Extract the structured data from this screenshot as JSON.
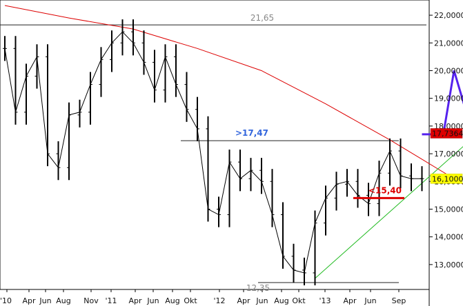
{
  "chart_data": {
    "type": "line",
    "title": "",
    "xlabel": "",
    "ylabel": "",
    "ylim": [
      12.35,
      22.35
    ],
    "grid": false,
    "y_ticks": [
      "13,0000",
      "14,0000",
      "15,0000",
      "16,0000",
      "17,0000",
      "18,0000",
      "19,0000",
      "20,0000",
      "21,0000",
      "22,0000"
    ],
    "x_ticks": [
      "'10",
      "Apr",
      "Jun",
      "Aug",
      "Nov",
      "'11",
      "Apr",
      "Jun",
      "Aug",
      "Okt",
      "'12",
      "Apr",
      "Jun",
      "Aug",
      "Okt",
      "'13",
      "Apr",
      "Jun",
      "Sep"
    ],
    "colors": {
      "price": "#000000",
      "moving_average": "#dd0000",
      "support_trend": "#22bb22",
      "forecast": "#5522ee",
      "label_blue": "#3366dd",
      "label_red": "#dd0000",
      "label_gray": "#888888"
    },
    "series": [
      {
        "kind": "price",
        "style": "high-low bars",
        "x": [
          "2010-01",
          "2010-02",
          "2010-03",
          "2010-04",
          "2010-05",
          "2010-06",
          "2010-07",
          "2010-08",
          "2010-09",
          "2010-10",
          "2010-11",
          "2010-12",
          "2011-01",
          "2011-02",
          "2011-03",
          "2011-04",
          "2011-05",
          "2011-06",
          "2011-07",
          "2011-08",
          "2011-09",
          "2011-10",
          "2011-11",
          "2011-12",
          "2012-01",
          "2012-02",
          "2012-03",
          "2012-04",
          "2012-05",
          "2012-06",
          "2012-07",
          "2012-08",
          "2012-09",
          "2012-10",
          "2012-11",
          "2012-12",
          "2013-01",
          "2013-02",
          "2013-03",
          "2013-04"
        ],
        "values": [
          20.8,
          18.5,
          19.8,
          20.5,
          17.0,
          16.5,
          18.4,
          18.5,
          19.5,
          20.4,
          21.0,
          21.4,
          21.0,
          20.3,
          19.3,
          20.5,
          19.5,
          18.6,
          17.9,
          15.0,
          14.8,
          16.7,
          16.1,
          16.4,
          16.0,
          14.8,
          13.3,
          12.8,
          12.7,
          14.5,
          15.4,
          15.9,
          16.0,
          15.5,
          15.2,
          16.3,
          17.1,
          16.2,
          16.1,
          16.1
        ]
      },
      {
        "kind": "moving_average",
        "x": [
          "2010-01",
          "2010-07",
          "2011-01",
          "2011-07",
          "2012-01",
          "2012-07",
          "2013-01",
          "2013-04",
          "2013-10"
        ],
        "values": [
          22.35,
          21.9,
          21.5,
          20.8,
          20.0,
          18.8,
          17.5,
          16.8,
          15.4
        ]
      },
      {
        "kind": "support_trend",
        "x": [
          "2012-06",
          "2013-10"
        ],
        "values": [
          12.5,
          18.0
        ]
      },
      {
        "kind": "forecast",
        "x": [
          "2013-04",
          "2013-06",
          "2013-07",
          "2013-08",
          "2013-10"
        ],
        "values": [
          17.7,
          17.7,
          20.0,
          18.7,
          21.5
        ]
      }
    ],
    "reference_lines": [
      {
        "value": 21.65,
        "label": "21,65",
        "label_color": "gray"
      },
      {
        "value": 17.47,
        "label": ">17,47",
        "label_color": "blue"
      },
      {
        "value": 12.35,
        "label": "12,35",
        "label_color": "gray"
      },
      {
        "value": 15.4,
        "label": "<15,40",
        "label_color": "red"
      }
    ],
    "price_flags": [
      {
        "label": "17,7364",
        "value": 17.7364,
        "color": "#dd0000"
      },
      {
        "label": "16,1000",
        "value": 16.1,
        "color": "#ffff00"
      }
    ]
  }
}
